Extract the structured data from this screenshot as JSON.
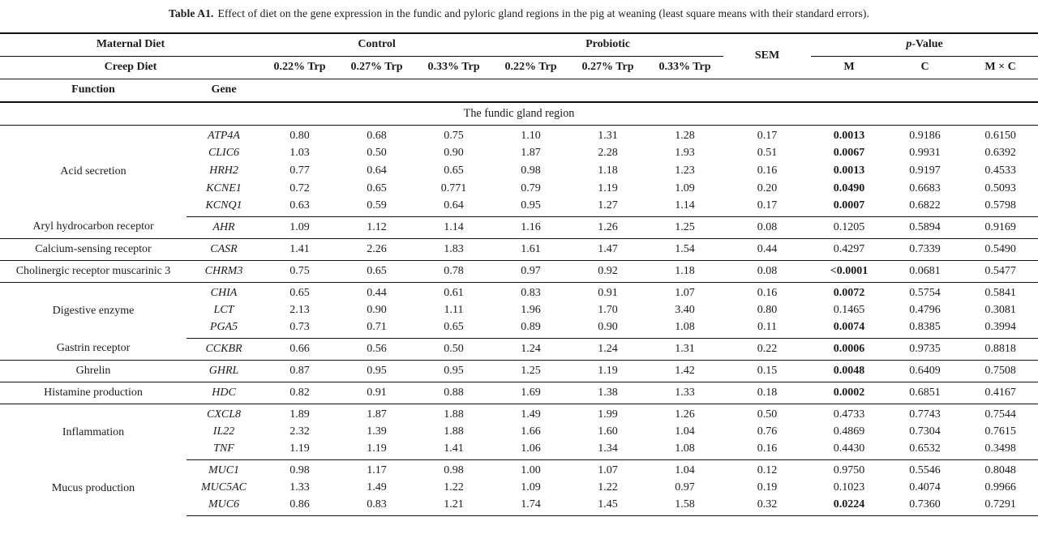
{
  "title": {
    "label": "Table A1.",
    "text": "Effect of diet on the gene expression in the fundic and pyloric gland regions in the pig at weaning (least square means with their standard errors)."
  },
  "header": {
    "maternal_diet": "Maternal Diet",
    "creep_diet": "Creep Diet",
    "control": "Control",
    "probiotic": "Probiotic",
    "sem": "SEM",
    "p_value": {
      "italic": "p",
      "rest": "-Value"
    },
    "trp_levels": [
      "0.22% Trp",
      "0.27% Trp",
      "0.33% Trp",
      "0.22% Trp",
      "0.27% Trp",
      "0.33% Trp"
    ],
    "m": "M",
    "c": "C",
    "mxc": "M × C",
    "function": "Function",
    "gene": "Gene"
  },
  "section": "The fundic gland region",
  "groups": [
    {
      "function": "Acid secretion",
      "rows": [
        {
          "gene": "ATP4A",
          "values": [
            "0.80",
            "0.68",
            "0.75",
            "1.10",
            "1.31",
            "1.28"
          ],
          "sem": "0.17",
          "m": "0.0013",
          "c": "0.9186",
          "mxc": "0.6150",
          "m_bold": true
        },
        {
          "gene": "CLIC6",
          "values": [
            "1.03",
            "0.50",
            "0.90",
            "1.87",
            "2.28",
            "1.93"
          ],
          "sem": "0.51",
          "m": "0.0067",
          "c": "0.9931",
          "mxc": "0.6392",
          "m_bold": true
        },
        {
          "gene": "HRH2",
          "values": [
            "0.77",
            "0.64",
            "0.65",
            "0.98",
            "1.18",
            "1.23"
          ],
          "sem": "0.16",
          "m": "0.0013",
          "c": "0.9197",
          "mxc": "0.4533",
          "m_bold": true
        },
        {
          "gene": "KCNE1",
          "values": [
            "0.72",
            "0.65",
            "0.771",
            "0.79",
            "1.19",
            "1.09"
          ],
          "sem": "0.20",
          "m": "0.0490",
          "c": "0.6683",
          "mxc": "0.5093",
          "m_bold": true
        },
        {
          "gene": "KCNQ1",
          "values": [
            "0.63",
            "0.59",
            "0.64",
            "0.95",
            "1.27",
            "1.14"
          ],
          "sem": "0.17",
          "m": "0.0007",
          "c": "0.6822",
          "mxc": "0.5798",
          "m_bold": true
        }
      ]
    },
    {
      "function": "Aryl hydrocarbon receptor",
      "rows": [
        {
          "gene": "AHR",
          "values": [
            "1.09",
            "1.12",
            "1.14",
            "1.16",
            "1.26",
            "1.25"
          ],
          "sem": "0.08",
          "m": "0.1205",
          "c": "0.5894",
          "mxc": "0.9169",
          "m_bold": false
        }
      ]
    },
    {
      "function": "Calcium-sensing receptor",
      "rows": [
        {
          "gene": "CASR",
          "values": [
            "1.41",
            "2.26",
            "1.83",
            "1.61",
            "1.47",
            "1.54"
          ],
          "sem": "0.44",
          "m": "0.4297",
          "c": "0.7339",
          "mxc": "0.5490",
          "m_bold": false
        }
      ]
    },
    {
      "function": "Cholinergic receptor muscarinic 3",
      "rows": [
        {
          "gene": "CHRM3",
          "values": [
            "0.75",
            "0.65",
            "0.78",
            "0.97",
            "0.92",
            "1.18"
          ],
          "sem": "0.08",
          "m": "<0.0001",
          "c": "0.0681",
          "mxc": "0.5477",
          "m_bold": true
        }
      ]
    },
    {
      "function": "Digestive enzyme",
      "rows": [
        {
          "gene": "CHIA",
          "values": [
            "0.65",
            "0.44",
            "0.61",
            "0.83",
            "0.91",
            "1.07"
          ],
          "sem": "0.16",
          "m": "0.0072",
          "c": "0.5754",
          "mxc": "0.5841",
          "m_bold": true
        },
        {
          "gene": "LCT",
          "values": [
            "2.13",
            "0.90",
            "1.11",
            "1.96",
            "1.70",
            "3.40"
          ],
          "sem": "0.80",
          "m": "0.1465",
          "c": "0.4796",
          "mxc": "0.3081",
          "m_bold": false
        },
        {
          "gene": "PGA5",
          "values": [
            "0.73",
            "0.71",
            "0.65",
            "0.89",
            "0.90",
            "1.08"
          ],
          "sem": "0.11",
          "m": "0.0074",
          "c": "0.8385",
          "mxc": "0.3994",
          "m_bold": true
        }
      ]
    },
    {
      "function": "Gastrin receptor",
      "rows": [
        {
          "gene": "CCKBR",
          "values": [
            "0.66",
            "0.56",
            "0.50",
            "1.24",
            "1.24",
            "1.31"
          ],
          "sem": "0.22",
          "m": "0.0006",
          "c": "0.9735",
          "mxc": "0.8818",
          "m_bold": true
        }
      ]
    },
    {
      "function": "Ghrelin",
      "rows": [
        {
          "gene": "GHRL",
          "values": [
            "0.87",
            "0.95",
            "0.95",
            "1.25",
            "1.19",
            "1.42"
          ],
          "sem": "0.15",
          "m": "0.0048",
          "c": "0.6409",
          "mxc": "0.7508",
          "m_bold": true
        }
      ]
    },
    {
      "function": "Histamine production",
      "rows": [
        {
          "gene": "HDC",
          "values": [
            "0.82",
            "0.91",
            "0.88",
            "1.69",
            "1.38",
            "1.33"
          ],
          "sem": "0.18",
          "m": "0.0002",
          "c": "0.6851",
          "mxc": "0.4167",
          "m_bold": true
        }
      ]
    },
    {
      "function": "Inflammation",
      "rows": [
        {
          "gene": "CXCL8",
          "values": [
            "1.89",
            "1.87",
            "1.88",
            "1.49",
            "1.99",
            "1.26"
          ],
          "sem": "0.50",
          "m": "0.4733",
          "c": "0.7743",
          "mxc": "0.7544",
          "m_bold": false
        },
        {
          "gene": "IL22",
          "values": [
            "2.32",
            "1.39",
            "1.88",
            "1.66",
            "1.60",
            "1.04"
          ],
          "sem": "0.76",
          "m": "0.4869",
          "c": "0.7304",
          "mxc": "0.7615",
          "m_bold": false
        },
        {
          "gene": "TNF",
          "values": [
            "1.19",
            "1.19",
            "1.41",
            "1.06",
            "1.34",
            "1.08"
          ],
          "sem": "0.16",
          "m": "0.4430",
          "c": "0.6532",
          "mxc": "0.3498",
          "m_bold": false
        }
      ]
    },
    {
      "function": "Mucus production",
      "rows": [
        {
          "gene": "MUC1",
          "values": [
            "0.98",
            "1.17",
            "0.98",
            "1.00",
            "1.07",
            "1.04"
          ],
          "sem": "0.12",
          "m": "0.9750",
          "c": "0.5546",
          "mxc": "0.8048",
          "m_bold": false
        },
        {
          "gene": "MUC5AC",
          "values": [
            "1.33",
            "1.49",
            "1.22",
            "1.09",
            "1.22",
            "0.97"
          ],
          "sem": "0.19",
          "m": "0.1023",
          "c": "0.4074",
          "mxc": "0.9966",
          "m_bold": false
        },
        {
          "gene": "MUC6",
          "values": [
            "0.86",
            "0.83",
            "1.21",
            "1.74",
            "1.45",
            "1.58"
          ],
          "sem": "0.32",
          "m": "0.0224",
          "c": "0.7360",
          "mxc": "0.7291",
          "m_bold": true
        }
      ]
    }
  ]
}
